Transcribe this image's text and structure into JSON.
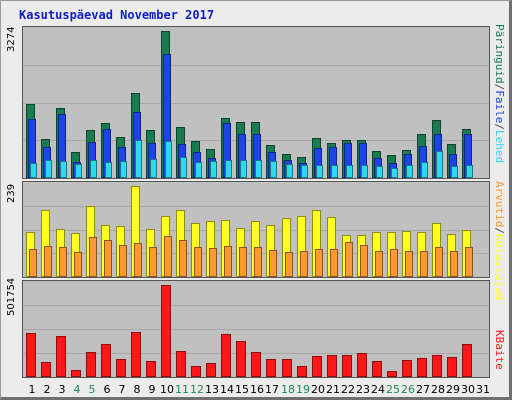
{
  "title": "Kasutuspäevad November 2017",
  "colors": {
    "lehed": "#1a7a50",
    "failid": "#1c44e6",
    "kulastused": "#30d8f0",
    "kulastajad": "#ffff20",
    "arvutid": "#ff9930",
    "kbaidid": "#ff1818",
    "weekend_label": "#1a8a50"
  },
  "right_labels": {
    "top": {
      "pages": "Lehed",
      "files": "Faile",
      "hits": "Päringuid"
    },
    "middle": {
      "visitors": "Külastajad",
      "hosts": "Arvutid"
    },
    "bottom": {
      "kbytes": "KBaite"
    },
    "separator": "/"
  },
  "chart_data": [
    {
      "type": "bar",
      "panel": "top",
      "ymax_label": "3274",
      "ylim": [
        0,
        3274
      ],
      "categories": [
        "1",
        "2",
        "3",
        "4",
        "5",
        "6",
        "7",
        "8",
        "9",
        "10",
        "11",
        "12",
        "13",
        "14",
        "15",
        "16",
        "17",
        "18",
        "19",
        "20",
        "21",
        "22",
        "23",
        "24",
        "25",
        "26",
        "27",
        "28",
        "29",
        "30",
        "31"
      ],
      "weekend_days": [
        "4",
        "5",
        "11",
        "12",
        "18",
        "19",
        "25",
        "26"
      ],
      "series": [
        {
          "name": "Päringuid",
          "color_key": "lehed",
          "values": [
            1650,
            875,
            1560,
            590,
            1060,
            1230,
            920,
            1890,
            1080,
            3274,
            1130,
            830,
            640,
            1330,
            1250,
            1250,
            745,
            540,
            470,
            900,
            770,
            850,
            850,
            610,
            520,
            630,
            990,
            1290,
            750,
            1100,
            0
          ]
        },
        {
          "name": "Faile",
          "color_key": "failid",
          "values": [
            1310,
            700,
            1430,
            350,
            800,
            1100,
            700,
            1480,
            770,
            2760,
            760,
            580,
            450,
            1220,
            990,
            970,
            570,
            410,
            330,
            670,
            700,
            770,
            780,
            450,
            330,
            530,
            720,
            970,
            540,
            980,
            0
          ]
        },
        {
          "name": "Lehed",
          "color_key": "kulastused",
          "values": [
            330,
            390,
            380,
            320,
            400,
            360,
            370,
            850,
            420,
            830,
            460,
            350,
            370,
            410,
            400,
            410,
            370,
            310,
            300,
            300,
            290,
            300,
            280,
            270,
            230,
            290,
            350,
            600,
            270,
            300,
            0
          ]
        }
      ]
    },
    {
      "type": "bar",
      "panel": "middle",
      "ymax_label": "239",
      "ylim": [
        0,
        239
      ],
      "categories": [
        "1",
        "2",
        "3",
        "4",
        "5",
        "6",
        "7",
        "8",
        "9",
        "10",
        "11",
        "12",
        "13",
        "14",
        "15",
        "16",
        "17",
        "18",
        "19",
        "20",
        "21",
        "22",
        "23",
        "24",
        "25",
        "26",
        "27",
        "28",
        "29",
        "30",
        "31"
      ],
      "series": [
        {
          "name": "Külastajad",
          "color_key": "kulastajad",
          "values": [
            119,
            175,
            125,
            115,
            187,
            137,
            133,
            239,
            125,
            160,
            175,
            141,
            148,
            151,
            130,
            147,
            137,
            154,
            160,
            177,
            158,
            111,
            110,
            117,
            118,
            122,
            117,
            143,
            113,
            124,
            0
          ]
        },
        {
          "name": "Arvutid",
          "color_key": "arvutid",
          "values": [
            73,
            82,
            78,
            66,
            104,
            96,
            83,
            89,
            78,
            108,
            98,
            78,
            75,
            82,
            80,
            78,
            70,
            66,
            68,
            73,
            73,
            91,
            84,
            69,
            73,
            69,
            69,
            79,
            67,
            79,
            0
          ]
        }
      ]
    },
    {
      "type": "bar",
      "panel": "bottom",
      "ymax_label": "501754",
      "ylim": [
        0,
        501754
      ],
      "categories": [
        "1",
        "2",
        "3",
        "4",
        "5",
        "6",
        "7",
        "8",
        "9",
        "10",
        "11",
        "12",
        "13",
        "14",
        "15",
        "16",
        "17",
        "18",
        "19",
        "20",
        "21",
        "22",
        "23",
        "24",
        "25",
        "26",
        "27",
        "28",
        "29",
        "30",
        "31"
      ],
      "series": [
        {
          "name": "KBaite",
          "color_key": "kbaidid",
          "values": [
            238000,
            82000,
            223000,
            40000,
            136000,
            180000,
            97000,
            245000,
            88000,
            501754,
            140000,
            60000,
            76000,
            236000,
            198000,
            134000,
            100000,
            100000,
            58000,
            113000,
            122000,
            118000,
            131000,
            87000,
            31000,
            95000,
            105000,
            121000,
            108000,
            181000,
            0
          ]
        }
      ]
    }
  ]
}
